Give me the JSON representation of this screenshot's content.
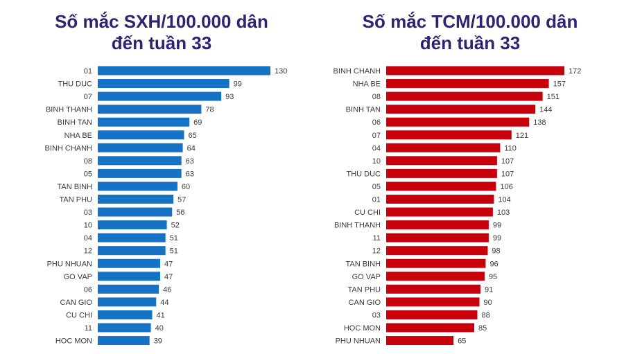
{
  "chart_data": [
    {
      "type": "bar",
      "orientation": "horizontal",
      "title_lines": [
        "Số mắc SXH/100.000 dân",
        "đến tuần 33"
      ],
      "color": "#1672c4",
      "xlim": [
        0,
        130
      ],
      "categories": [
        "01",
        "THU DUC",
        "07",
        "BINH THANH",
        "BINH TAN",
        "NHA BE",
        "BINH CHANH",
        "08",
        "05",
        "TAN BINH",
        "TAN PHU",
        "03",
        "10",
        "04",
        "12",
        "PHU NHUAN",
        "GO VAP",
        "06",
        "CAN GIO",
        "CU CHI",
        "11",
        "HOC MON"
      ],
      "values": [
        130,
        99,
        93,
        78,
        69,
        65,
        64,
        63,
        63,
        60,
        57,
        56,
        52,
        51,
        51,
        47,
        47,
        46,
        44,
        41,
        40,
        39
      ]
    },
    {
      "type": "bar",
      "orientation": "horizontal",
      "title_lines": [
        "Số mắc TCM/100.000 dân",
        "đến tuần 33"
      ],
      "color": "#c8000c",
      "xlim": [
        0,
        172
      ],
      "categories": [
        "BINH CHANH",
        "NHA BE",
        "08",
        "BINH TAN",
        "06",
        "07",
        "04",
        "10",
        "THU DUC",
        "05",
        "01",
        "CU CHI",
        "BINH THANH",
        "11",
        "12",
        "TAN BINH",
        "GO VAP",
        "TAN PHU",
        "CAN GIO",
        "03",
        "HOC MON",
        "PHU NHUAN"
      ],
      "values": [
        172,
        157,
        151,
        144,
        138,
        121,
        110,
        107,
        107,
        106,
        104,
        103,
        99,
        99,
        98,
        96,
        95,
        91,
        90,
        88,
        85,
        65
      ]
    }
  ]
}
